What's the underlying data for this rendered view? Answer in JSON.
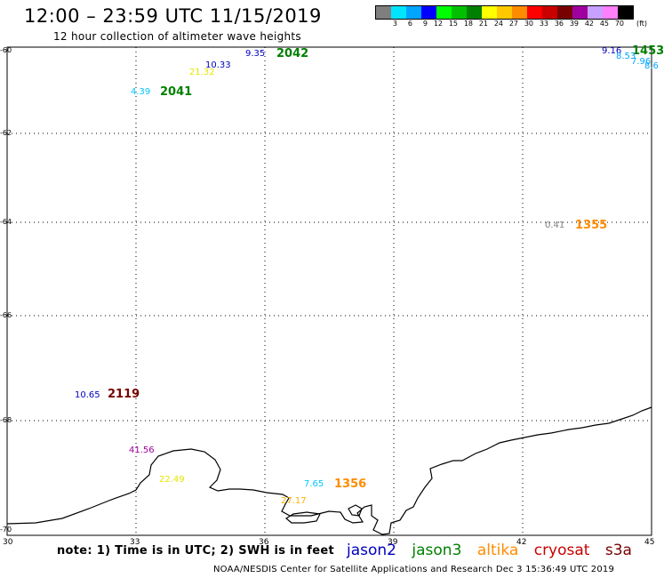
{
  "title": "12:00 – 23:59 UTC 11/15/2019",
  "subtitle": "12 hour collection of altimeter wave heights",
  "colorbar": {
    "colors": [
      "#7f7f7f",
      "#00e5ff",
      "#00a5ff",
      "#0000ff",
      "#00ff00",
      "#00c000",
      "#008000",
      "#ffff00",
      "#ffc800",
      "#ff8c00",
      "#ff0000",
      "#c80000",
      "#780000",
      "#a000a0",
      "#c8a0ff",
      "#ff80ff",
      "#000000"
    ],
    "labels": [
      "3",
      "6",
      "9",
      "12",
      "15",
      "18",
      "21",
      "24",
      "27",
      "30",
      "33",
      "36",
      "39",
      "42",
      "45",
      "70"
    ],
    "unit": "(ft)"
  },
  "lat_labels": [
    "-60",
    "-62",
    "-64",
    "-66",
    "-68",
    "-70"
  ],
  "lon_labels": [
    "30",
    "33",
    "36",
    "39",
    "42",
    "45"
  ],
  "observations": [
    {
      "text": "9.35",
      "color": "#0000c0",
      "kind": "swh"
    },
    {
      "text": "2042",
      "color": "#008000",
      "kind": "pass"
    },
    {
      "text": "10.33",
      "color": "#0000c0",
      "kind": "swh"
    },
    {
      "text": "21.32",
      "color": "#e6e600",
      "kind": "swh"
    },
    {
      "text": "4.39",
      "color": "#00c8ff",
      "kind": "swh"
    },
    {
      "text": "2041",
      "color": "#008000",
      "kind": "pass"
    },
    {
      "text": "9.16",
      "color": "#0000c0",
      "kind": "swh"
    },
    {
      "text": "1453",
      "color": "#008000",
      "kind": "pass"
    },
    {
      "text": "8.53",
      "color": "#00a5ff",
      "kind": "swh"
    },
    {
      "text": "7.96",
      "color": "#00a5ff",
      "kind": "swh"
    },
    {
      "text": "8.6",
      "color": "#00a5ff",
      "kind": "swh"
    },
    {
      "text": "0.41",
      "color": "#7f7f7f",
      "kind": "swh"
    },
    {
      "text": "1355",
      "color": "#ff8c00",
      "kind": "pass"
    },
    {
      "text": "10.65",
      "color": "#0000c0",
      "kind": "swh"
    },
    {
      "text": "2119",
      "color": "#780000",
      "kind": "pass"
    },
    {
      "text": "41.56",
      "color": "#a000a0",
      "kind": "swh"
    },
    {
      "text": "22.49",
      "color": "#e6e600",
      "kind": "swh"
    },
    {
      "text": "7.65",
      "color": "#00c8ff",
      "kind": "swh"
    },
    {
      "text": "1356",
      "color": "#ff8c00",
      "kind": "pass"
    },
    {
      "text": "27.17",
      "color": "#ffb000",
      "kind": "swh"
    }
  ],
  "note": "note: 1) Time is in UTC; 2) SWH is in feet",
  "legend": [
    {
      "name": "jason2",
      "color": "#0000c0"
    },
    {
      "name": "jason3",
      "color": "#008000"
    },
    {
      "name": "altika",
      "color": "#ff8c00"
    },
    {
      "name": "cryosat",
      "color": "#cc0000"
    },
    {
      "name": "s3a",
      "color": "#780000"
    }
  ],
  "footer": "NOAA/NESDIS Center for Satellite Applications and Research    Dec  3 15:36:49 UTC 2019"
}
